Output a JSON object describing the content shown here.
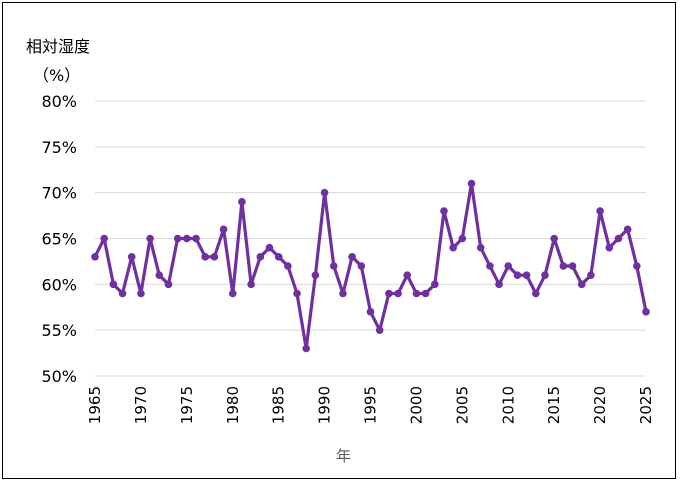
{
  "chart_data": {
    "type": "line",
    "ylabel_line1": "相対湿度",
    "ylabel_line2": "（%）",
    "xlabel": "年",
    "ylim": [
      50,
      80
    ],
    "xlim": [
      1965,
      2025
    ],
    "y_ticks": [
      "50%",
      "55%",
      "60%",
      "65%",
      "70%",
      "75%",
      "80%"
    ],
    "y_tick_values": [
      50,
      55,
      60,
      65,
      70,
      75,
      80
    ],
    "x_ticks": [
      "1965",
      "1970",
      "1975",
      "1980",
      "1985",
      "1990",
      "1995",
      "2000",
      "2005",
      "2010",
      "2015",
      "2020",
      "2025"
    ],
    "x_tick_values": [
      1965,
      1970,
      1975,
      1980,
      1985,
      1990,
      1995,
      2000,
      2005,
      2010,
      2015,
      2020,
      2025
    ],
    "grid": true,
    "series_color": "#7030A0",
    "x": [
      1965,
      1966,
      1967,
      1968,
      1969,
      1970,
      1971,
      1972,
      1973,
      1974,
      1975,
      1976,
      1977,
      1978,
      1979,
      1980,
      1981,
      1982,
      1983,
      1984,
      1985,
      1986,
      1987,
      1988,
      1989,
      1990,
      1991,
      1992,
      1993,
      1994,
      1995,
      1996,
      1997,
      1998,
      1999,
      2000,
      2001,
      2002,
      2003,
      2004,
      2005,
      2006,
      2007,
      2008,
      2009,
      2010,
      2011,
      2012,
      2013,
      2014,
      2015,
      2016,
      2017,
      2018,
      2019,
      2020,
      2021,
      2022,
      2023,
      2024,
      2025
    ],
    "series": [
      {
        "values": [
          63,
          65,
          60,
          59,
          63,
          59,
          65,
          61,
          60,
          65,
          65,
          65,
          63,
          63,
          66,
          59,
          69,
          60,
          63,
          64,
          63,
          62,
          59,
          53,
          61,
          70,
          62,
          59,
          63,
          62,
          57,
          55,
          59,
          59,
          61,
          59,
          59,
          60,
          68,
          64,
          65,
          71,
          64,
          62,
          60,
          62,
          61,
          61,
          59,
          61,
          65,
          62,
          62,
          60,
          61,
          68,
          64,
          65,
          66,
          62,
          57
        ]
      }
    ]
  }
}
